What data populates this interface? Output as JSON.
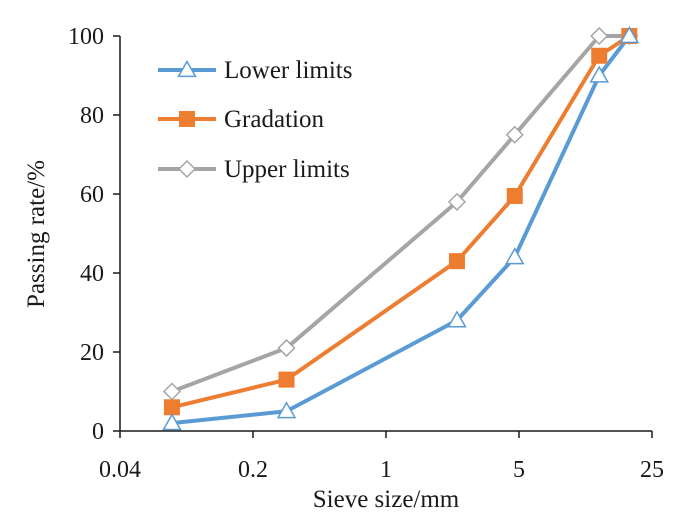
{
  "chart_data": {
    "type": "line",
    "xscale": "log",
    "xlim": [
      0.04,
      25
    ],
    "ylim": [
      0,
      100
    ],
    "xticks": [
      0.04,
      0.2,
      1,
      5,
      25
    ],
    "xtick_labels": [
      "0.04",
      "0.2",
      "1",
      "5",
      "25"
    ],
    "yticks": [
      0,
      20,
      40,
      60,
      80,
      100
    ],
    "ytick_labels": [
      "0",
      "20",
      "40",
      "60",
      "80",
      "100"
    ],
    "xlabel": "Sieve size/mm",
    "ylabel": "Passing rate/%",
    "grid": false,
    "legend_position": "top-left",
    "x": [
      0.075,
      0.3,
      2.36,
      4.75,
      13.2,
      19
    ],
    "series": [
      {
        "name": "Lower limits",
        "values": [
          2,
          5,
          28,
          44,
          90,
          100
        ],
        "color": "#5b9bd5",
        "marker": "triangle-open"
      },
      {
        "name": "Gradation",
        "values": [
          6,
          13,
          43,
          59.5,
          95,
          100
        ],
        "color": "#ed7d31",
        "marker": "square-filled"
      },
      {
        "name": "Upper limits",
        "values": [
          10,
          21,
          58,
          75,
          100,
          100
        ],
        "color": "#a5a5a5",
        "marker": "diamond-open"
      }
    ]
  }
}
